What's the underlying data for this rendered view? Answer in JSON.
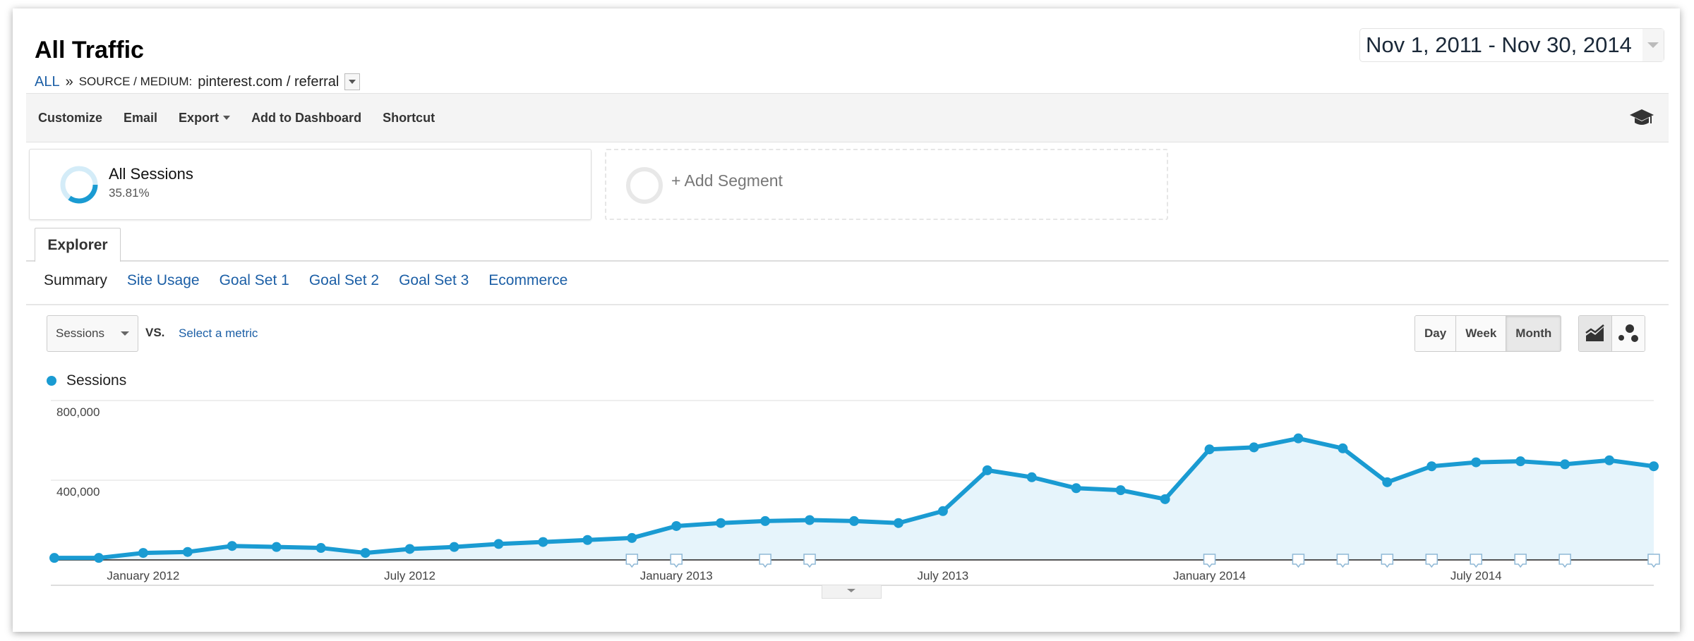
{
  "header": {
    "title": "All Traffic",
    "breadcrumb": {
      "root": "ALL",
      "separator": "»",
      "dimension": "SOURCE / MEDIUM:",
      "value": "pinterest.com / referral"
    },
    "date_range": "Nov 1, 2011 - Nov 30, 2014"
  },
  "toolbar": {
    "customize": "Customize",
    "email": "Email",
    "export": "Export",
    "add_to_dashboard": "Add to Dashboard",
    "shortcut": "Shortcut",
    "help_icon": "graduation-cap-icon"
  },
  "segments": {
    "active": {
      "name": "All Sessions",
      "percent": "35.81%"
    },
    "add": "+ Add Segment"
  },
  "tabs": {
    "explorer": "Explorer"
  },
  "subtabs": [
    "Summary",
    "Site Usage",
    "Goal Set 1",
    "Goal Set 2",
    "Goal Set 3",
    "Ecommerce"
  ],
  "controls": {
    "metric": "Sessions",
    "vs": "VS.",
    "select_metric": "Select a metric",
    "granularity": [
      "Day",
      "Week",
      "Month"
    ],
    "granularity_selected": "Month",
    "chart_types": [
      "line-chart-icon",
      "motion-chart-icon"
    ],
    "chart_type_selected": "line-chart-icon"
  },
  "colors": {
    "accent": "#1a9bd2",
    "fill": "#e6f4fb",
    "link": "#1c5fa6"
  },
  "chart_data": {
    "type": "area",
    "legend": [
      "Sessions"
    ],
    "legend_placement": "top-left",
    "x": [
      "Nov 2011",
      "Dec 2011",
      "Jan 2012",
      "Feb 2012",
      "Mar 2012",
      "Apr 2012",
      "May 2012",
      "Jun 2012",
      "Jul 2012",
      "Aug 2012",
      "Sep 2012",
      "Oct 2012",
      "Nov 2012",
      "Dec 2012",
      "Jan 2013",
      "Feb 2013",
      "Mar 2013",
      "Apr 2013",
      "May 2013",
      "Jun 2013",
      "Jul 2013",
      "Aug 2013",
      "Sep 2013",
      "Oct 2013",
      "Nov 2013",
      "Dec 2013",
      "Jan 2014",
      "Feb 2014",
      "Mar 2014",
      "Apr 2014",
      "May 2014",
      "Jun 2014",
      "Jul 2014",
      "Aug 2014",
      "Sep 2014",
      "Oct 2014",
      "Nov 2014"
    ],
    "series": [
      {
        "name": "Sessions",
        "values": [
          10000,
          10000,
          35000,
          40000,
          70000,
          65000,
          60000,
          35000,
          55000,
          65000,
          80000,
          90000,
          100000,
          110000,
          170000,
          185000,
          195000,
          200000,
          195000,
          185000,
          245000,
          450000,
          415000,
          360000,
          350000,
          305000,
          555000,
          565000,
          610000,
          560000,
          390000,
          470000,
          490000,
          495000,
          480000,
          500000,
          470000
        ]
      }
    ],
    "annotations": [
      "Dec 2012",
      "Jan 2013",
      "Mar 2013",
      "Apr 2013",
      "Jan 2014",
      "Mar 2014",
      "Apr 2014",
      "May 2014",
      "Jun 2014",
      "Jul 2014",
      "Aug 2014",
      "Sep 2014",
      "Nov 2014"
    ],
    "y_ticks": [
      "400,000",
      "800,000"
    ],
    "y_tick_values": [
      400000,
      800000
    ],
    "x_ticks": [
      "January 2012",
      "July 2012",
      "January 2013",
      "July 2013",
      "January 2014",
      "July 2014"
    ],
    "x_tick_positions": [
      "Jan 2012",
      "Jul 2012",
      "Jan 2013",
      "Jul 2013",
      "Jan 2014",
      "Jul 2014"
    ],
    "ylim": [
      0,
      800000
    ],
    "grid": true
  }
}
